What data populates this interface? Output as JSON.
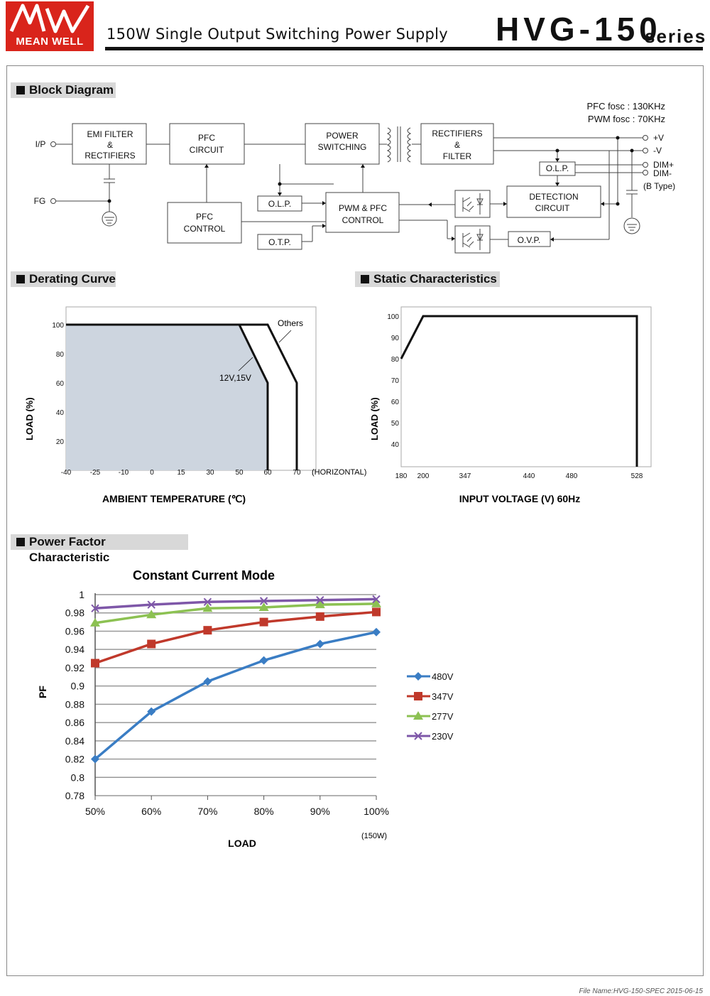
{
  "header": {
    "brand": "MEAN WELL",
    "title": "150W Single Output Switching Power Supply",
    "model": "HVG-150",
    "series": "series"
  },
  "sections": {
    "block": "Block Diagram",
    "derating": "Derating Curve",
    "static": "Static Characteristics",
    "pf": "Power Factor Characteristic"
  },
  "block_diagram": {
    "freq1": "PFC fosc : 130KHz",
    "freq2": "PWM fosc : 70KHz",
    "ip": "I/P",
    "fg": "FG",
    "emi1": "EMI FILTER",
    "emi2": "&",
    "emi3": "RECTIFIERS",
    "pfc1": "PFC",
    "pfc2": "CIRCUIT",
    "pwr1": "POWER",
    "pwr2": "SWITCHING",
    "rect1": "RECTIFIERS",
    "rect2": "&",
    "rect3": "FILTER",
    "pfcc1": "PFC",
    "pfcc2": "CONTROL",
    "olp": "O.L.P.",
    "otp": "O.T.P.",
    "pwm1": "PWM & PFC",
    "pwm2": "CONTROL",
    "olp2": "O.L.P.",
    "det1": "DETECTION",
    "det2": "CIRCUIT",
    "ovp": "O.V.P.",
    "vplus": "+V",
    "vminus": "-V",
    "dimp": "DIM+",
    "dimm": "DIM-",
    "btype": "(B Type)"
  },
  "derating": {
    "ylabel": "LOAD (%)",
    "xlabel": "AMBIENT TEMPERATURE (℃)",
    "horizontal": "(HORIZONTAL)",
    "others": "Others",
    "v1215": "12V,15V"
  },
  "static": {
    "ylabel": "LOAD (%)",
    "xlabel": "INPUT VOLTAGE (V) 60Hz"
  },
  "pf_chart": {
    "title": "Constant Current Mode",
    "ylabel": "PF",
    "xlabel": "LOAD",
    "note": "(150W)"
  },
  "footer": {
    "file": "File Name:HVG-150-SPEC   2015-06-15"
  },
  "chart_data": [
    {
      "type": "area",
      "title": "Derating Curve",
      "xlabel": "AMBIENT TEMPERATURE (℃)",
      "ylabel": "LOAD (%)",
      "x_ticks": [
        "-40",
        "-25",
        "-10",
        "0",
        "15",
        "30",
        "50",
        "60",
        "70"
      ],
      "y_ticks": [
        "100",
        "80",
        "60",
        "40",
        "20"
      ],
      "series": [
        {
          "name": "12V,15V",
          "x": [
            -40,
            50,
            60,
            60
          ],
          "y": [
            100,
            100,
            60,
            0
          ]
        },
        {
          "name": "Others",
          "x": [
            -40,
            60,
            70,
            70
          ],
          "y": [
            100,
            100,
            60,
            0
          ]
        }
      ],
      "grid": false
    },
    {
      "type": "line",
      "title": "Static Characteristics",
      "xlabel": "INPUT VOLTAGE (V) 60Hz",
      "ylabel": "LOAD (%)",
      "x_ticks": [
        "180",
        "200",
        "347",
        "440",
        "480",
        "528"
      ],
      "y_ticks": [
        "100",
        "90",
        "80",
        "70",
        "60",
        "50",
        "40"
      ],
      "series": [
        {
          "x": [
            180,
            200,
            528,
            528
          ],
          "y": [
            80,
            100,
            100,
            30
          ]
        }
      ],
      "grid": false
    },
    {
      "type": "line",
      "title": "Constant Current Mode",
      "xlabel": "LOAD",
      "ylabel": "PF",
      "categories": [
        "50%",
        "60%",
        "70%",
        "80%",
        "90%",
        "100%"
      ],
      "y_ticks": [
        "1",
        "0.98",
        "0.96",
        "0.94",
        "0.92",
        "0.9",
        "0.88",
        "0.86",
        "0.84",
        "0.82",
        "0.8",
        "0.78"
      ],
      "ylim": [
        0.78,
        1
      ],
      "series": [
        {
          "name": "480V",
          "color": "#3a7dc4",
          "marker": "diamond",
          "values": [
            0.82,
            0.872,
            0.905,
            0.928,
            0.946,
            0.959
          ]
        },
        {
          "name": "347V",
          "color": "#c0392b",
          "marker": "square",
          "values": [
            0.925,
            0.946,
            0.961,
            0.97,
            0.976,
            0.981
          ]
        },
        {
          "name": "277V",
          "color": "#8cc152",
          "marker": "triangle",
          "values": [
            0.969,
            0.978,
            0.985,
            0.986,
            0.989,
            0.99
          ]
        },
        {
          "name": "230V",
          "color": "#7e57a8",
          "marker": "x",
          "values": [
            0.985,
            0.989,
            0.992,
            0.993,
            0.994,
            0.995
          ]
        }
      ],
      "grid": true,
      "legend": "right"
    }
  ]
}
